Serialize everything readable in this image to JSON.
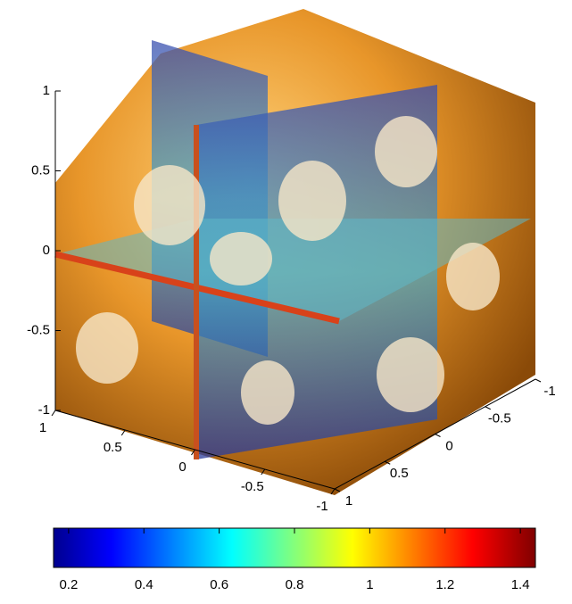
{
  "chart_data": {
    "type": "surface3d",
    "zlim": [
      -1,
      1
    ],
    "zticks": [
      -1,
      -0.5,
      0,
      0.5,
      1
    ],
    "xlim": [
      -1,
      1
    ],
    "xticks": [
      1,
      0.5,
      0,
      -0.5,
      -1
    ],
    "ylim": [
      -1,
      1
    ],
    "yticks": [
      -1,
      -0.5,
      0,
      0.5,
      1
    ],
    "colorbar": {
      "clim": [
        0.16,
        1.44
      ],
      "ticks": [
        0.2,
        0.4,
        0.6,
        0.8,
        1,
        1.2,
        1.4
      ]
    }
  }
}
